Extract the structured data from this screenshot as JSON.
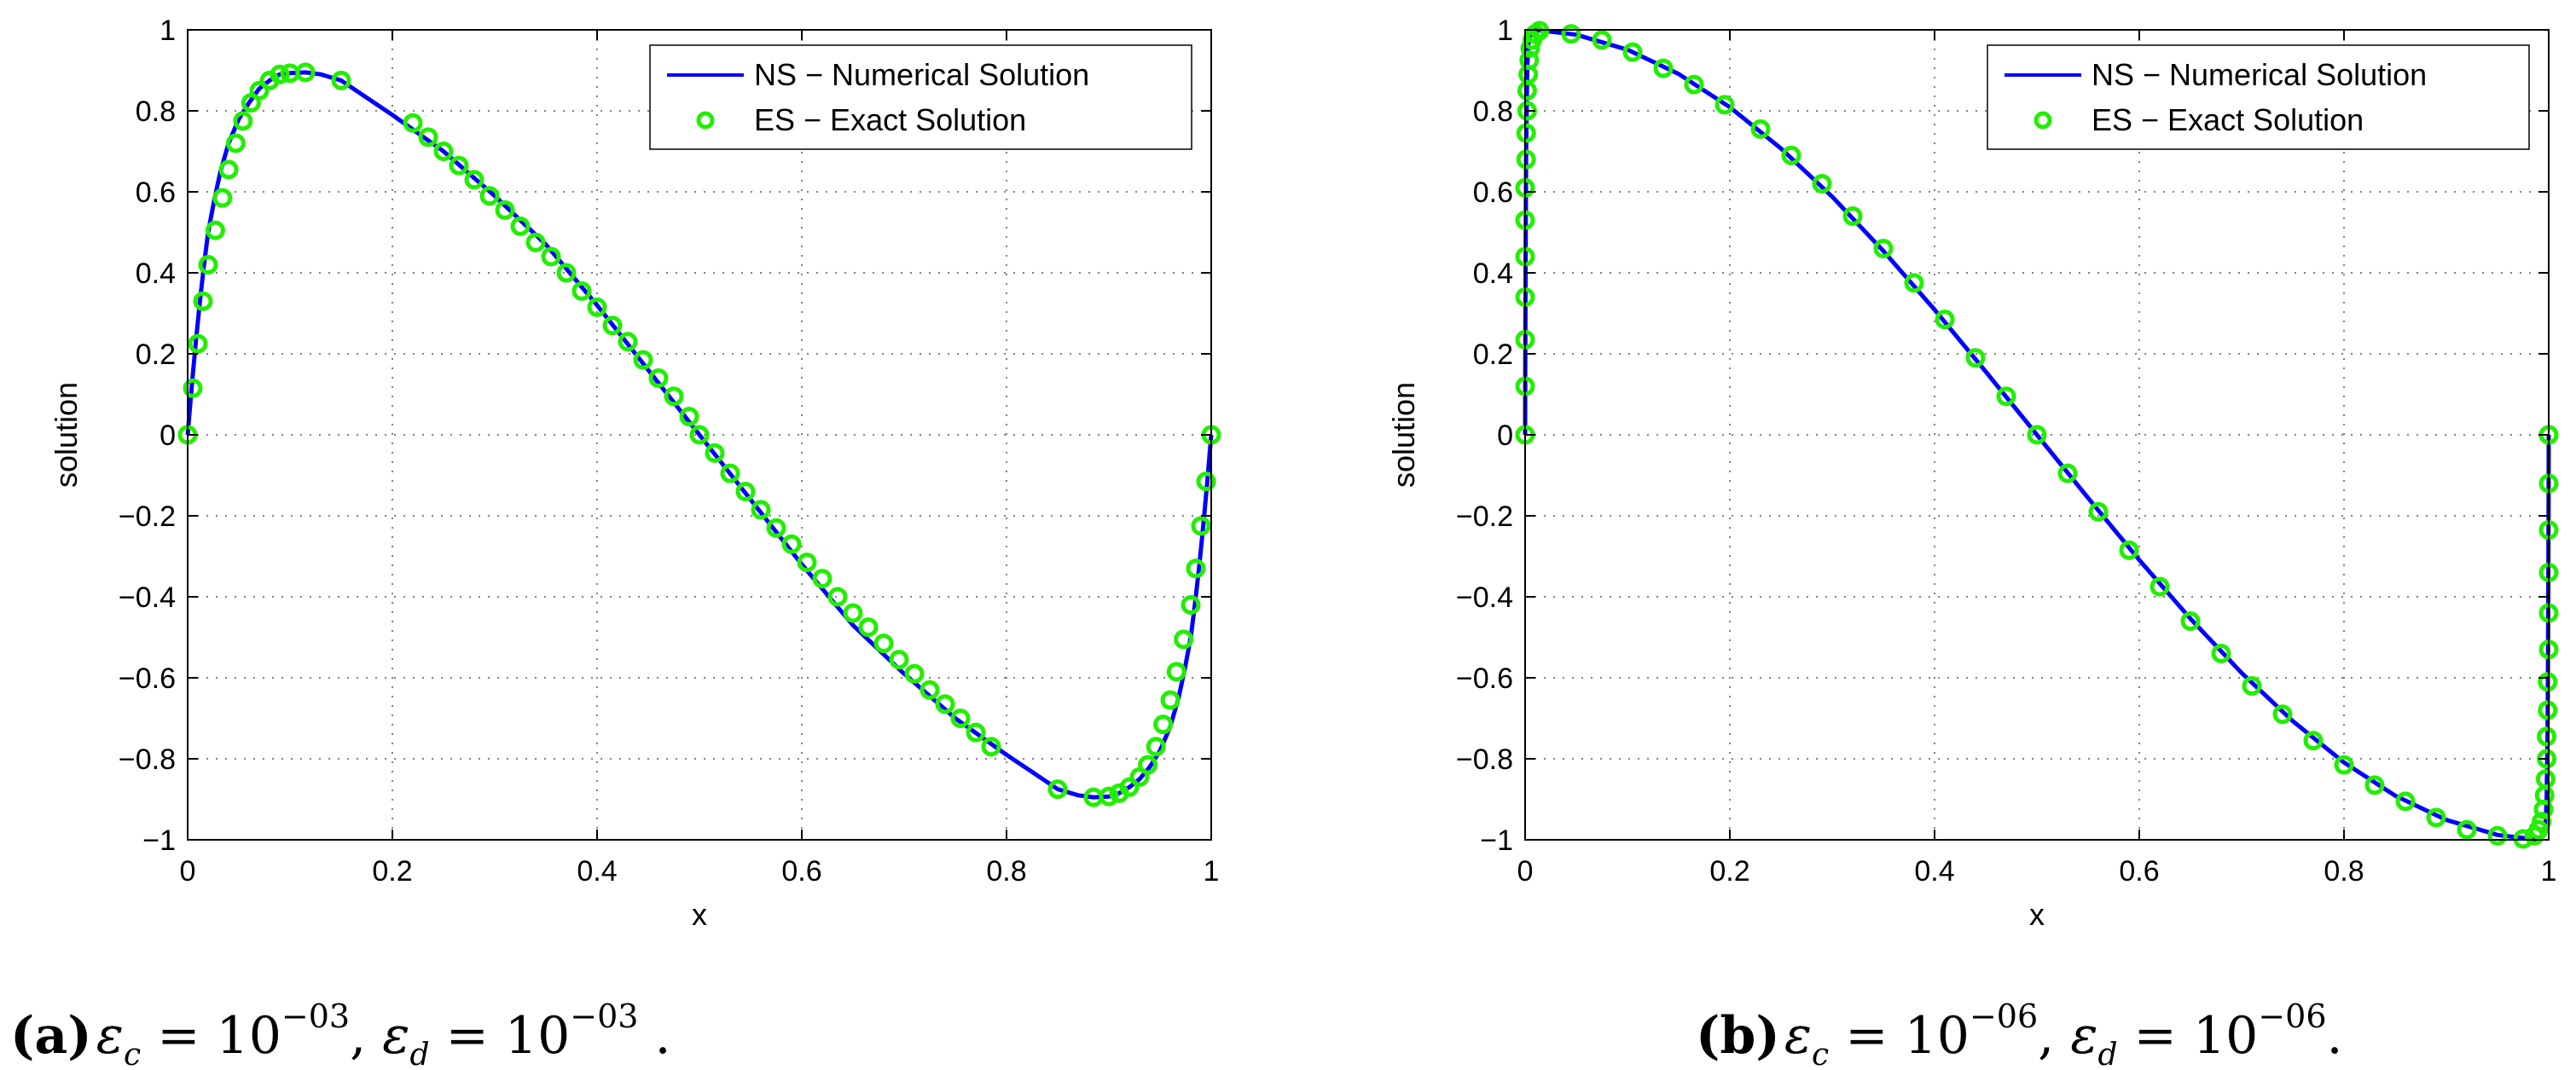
{
  "chart_data": [
    {
      "type": "line",
      "panel": "a",
      "xlabel": "x",
      "ylabel": "solution",
      "xlim": [
        0,
        1
      ],
      "ylim": [
        -1,
        1
      ],
      "xticks": [
        0,
        0.2,
        0.4,
        0.6,
        0.8,
        1
      ],
      "xtick_labels": [
        "0",
        "0.2",
        "0.4",
        "0.6",
        "0.8",
        "1"
      ],
      "yticks": [
        -1,
        -0.8,
        -0.6,
        -0.4,
        -0.2,
        0,
        0.2,
        0.4,
        0.6,
        0.8,
        1
      ],
      "ytick_labels": [
        "−1",
        "−0.8",
        "−0.6",
        "−0.4",
        "−0.2",
        "0",
        "0.2",
        "0.4",
        "0.6",
        "0.8",
        "1"
      ],
      "grid": true,
      "legend_position": "top-right",
      "caption": {
        "tag": "(a)",
        "text": "εc = 10−03, εd = 10−03 ."
      },
      "series": [
        {
          "name": "NS − Numerical Solution",
          "style": "line",
          "color": "#0000ff",
          "x": [
            0,
            0.004,
            0.008,
            0.012,
            0.016,
            0.02,
            0.026,
            0.032,
            0.04,
            0.05,
            0.06,
            0.07,
            0.08,
            0.09,
            0.1,
            0.115,
            0.13,
            0.15,
            0.2,
            0.25,
            0.3,
            0.35,
            0.4,
            0.45,
            0.5,
            0.55,
            0.6,
            0.65,
            0.7,
            0.75,
            0.8,
            0.85,
            0.87,
            0.885,
            0.9,
            0.91,
            0.92,
            0.93,
            0.94,
            0.95,
            0.96,
            0.968,
            0.974,
            0.98,
            0.984,
            0.988,
            0.992,
            0.996,
            1
          ],
          "y": [
            0,
            0.12,
            0.23,
            0.33,
            0.42,
            0.5,
            0.58,
            0.65,
            0.72,
            0.78,
            0.82,
            0.855,
            0.875,
            0.89,
            0.893,
            0.895,
            0.89,
            0.875,
            0.79,
            0.7,
            0.59,
            0.47,
            0.32,
            0.16,
            0,
            -0.16,
            -0.32,
            -0.47,
            -0.59,
            -0.7,
            -0.79,
            -0.875,
            -0.89,
            -0.895,
            -0.893,
            -0.885,
            -0.87,
            -0.85,
            -0.82,
            -0.78,
            -0.72,
            -0.65,
            -0.58,
            -0.5,
            -0.42,
            -0.33,
            -0.23,
            -0.12,
            0
          ]
        },
        {
          "name": "ES − Exact Solution",
          "style": "markers",
          "marker": "circle",
          "color": "#22ee00",
          "x": [
            0,
            0.005,
            0.01,
            0.015,
            0.02,
            0.027,
            0.034,
            0.04,
            0.047,
            0.054,
            0.062,
            0.07,
            0.08,
            0.09,
            0.1,
            0.115,
            0.15,
            0.22,
            0.235,
            0.25,
            0.265,
            0.28,
            0.295,
            0.31,
            0.325,
            0.34,
            0.355,
            0.37,
            0.385,
            0.4,
            0.415,
            0.43,
            0.445,
            0.46,
            0.475,
            0.49,
            0.5,
            0.515,
            0.53,
            0.545,
            0.56,
            0.575,
            0.59,
            0.605,
            0.62,
            0.635,
            0.65,
            0.665,
            0.68,
            0.695,
            0.71,
            0.725,
            0.74,
            0.755,
            0.77,
            0.785,
            0.85,
            0.885,
            0.9,
            0.91,
            0.92,
            0.93,
            0.938,
            0.946,
            0.953,
            0.96,
            0.966,
            0.973,
            0.98,
            0.985,
            0.99,
            0.995,
            1
          ],
          "y": [
            0,
            0.115,
            0.225,
            0.33,
            0.42,
            0.505,
            0.585,
            0.655,
            0.72,
            0.775,
            0.82,
            0.85,
            0.875,
            0.89,
            0.893,
            0.895,
            0.875,
            0.77,
            0.735,
            0.7,
            0.665,
            0.63,
            0.59,
            0.555,
            0.515,
            0.475,
            0.44,
            0.4,
            0.355,
            0.315,
            0.27,
            0.23,
            0.185,
            0.14,
            0.095,
            0.045,
            0,
            -0.045,
            -0.095,
            -0.14,
            -0.185,
            -0.23,
            -0.27,
            -0.315,
            -0.355,
            -0.4,
            -0.44,
            -0.475,
            -0.515,
            -0.555,
            -0.59,
            -0.63,
            -0.665,
            -0.7,
            -0.735,
            -0.77,
            -0.875,
            -0.895,
            -0.893,
            -0.885,
            -0.87,
            -0.845,
            -0.815,
            -0.77,
            -0.715,
            -0.655,
            -0.585,
            -0.505,
            -0.42,
            -0.33,
            -0.225,
            -0.115,
            0
          ]
        }
      ]
    },
    {
      "type": "line",
      "panel": "b",
      "xlabel": "x",
      "ylabel": "solution",
      "xlim": [
        0,
        1
      ],
      "ylim": [
        -1,
        1
      ],
      "xticks": [
        0,
        0.2,
        0.4,
        0.6,
        0.8,
        1
      ],
      "xtick_labels": [
        "0",
        "0.2",
        "0.4",
        "0.6",
        "0.8",
        "1"
      ],
      "yticks": [
        -1,
        -0.8,
        -0.6,
        -0.4,
        -0.2,
        0,
        0.2,
        0.4,
        0.6,
        0.8,
        1
      ],
      "ytick_labels": [
        "−1",
        "−0.8",
        "−0.6",
        "−0.4",
        "−0.2",
        "0",
        "0.2",
        "0.4",
        "0.6",
        "0.8",
        "1"
      ],
      "grid": true,
      "legend_position": "top-right",
      "caption": {
        "tag": "(b)",
        "text": "εc = 10−06, εd = 10−06."
      },
      "series": [
        {
          "name": "NS − Numerical Solution",
          "style": "line",
          "color": "#0000ff",
          "x": [
            0,
            0.0002,
            0.0005,
            0.001,
            0.002,
            0.003,
            0.005,
            0.01,
            0.05,
            0.1,
            0.15,
            0.2,
            0.25,
            0.3,
            0.35,
            0.4,
            0.45,
            0.5,
            0.55,
            0.6,
            0.65,
            0.7,
            0.75,
            0.8,
            0.85,
            0.9,
            0.95,
            0.99,
            0.995,
            0.997,
            0.998,
            0.999,
            0.9995,
            0.9998,
            1
          ],
          "y": [
            0,
            0.2,
            0.45,
            0.7,
            0.9,
            0.96,
            0.99,
            1,
            0.988,
            0.951,
            0.891,
            0.809,
            0.707,
            0.588,
            0.454,
            0.309,
            0.156,
            0,
            -0.156,
            -0.309,
            -0.454,
            -0.588,
            -0.707,
            -0.809,
            -0.891,
            -0.951,
            -0.988,
            -1,
            -0.99,
            -0.96,
            -0.9,
            -0.7,
            -0.45,
            -0.2,
            0
          ]
        },
        {
          "name": "ES − Exact Solution",
          "style": "markers",
          "marker": "circle",
          "color": "#22ee00",
          "x": [
            0,
            0,
            0,
            0,
            0,
            0,
            0,
            0.001,
            0.001,
            0.002,
            0.002,
            0.003,
            0.004,
            0.005,
            0.007,
            0.01,
            0.014,
            0.045,
            0.075,
            0.105,
            0.135,
            0.165,
            0.195,
            0.23,
            0.26,
            0.29,
            0.32,
            0.35,
            0.38,
            0.41,
            0.44,
            0.47,
            0.5,
            0.53,
            0.56,
            0.59,
            0.62,
            0.65,
            0.68,
            0.71,
            0.74,
            0.77,
            0.8,
            0.83,
            0.86,
            0.89,
            0.92,
            0.95,
            0.975,
            0.986,
            0.99,
            0.993,
            0.995,
            0.996,
            0.997,
            0.998,
            0.998,
            0.999,
            0.999,
            1,
            1,
            1,
            1,
            1,
            1,
            1
          ],
          "y": [
            0,
            0.12,
            0.235,
            0.34,
            0.44,
            0.53,
            0.61,
            0.68,
            0.745,
            0.8,
            0.85,
            0.89,
            0.925,
            0.955,
            0.975,
            0.99,
            0.998,
            0.99,
            0.975,
            0.945,
            0.905,
            0.865,
            0.815,
            0.755,
            0.69,
            0.62,
            0.54,
            0.46,
            0.375,
            0.285,
            0.19,
            0.095,
            0,
            -0.095,
            -0.19,
            -0.285,
            -0.375,
            -0.46,
            -0.54,
            -0.62,
            -0.69,
            -0.755,
            -0.815,
            -0.865,
            -0.905,
            -0.945,
            -0.975,
            -0.99,
            -0.998,
            -0.99,
            -0.975,
            -0.955,
            -0.925,
            -0.89,
            -0.85,
            -0.8,
            -0.745,
            -0.68,
            -0.61,
            -0.53,
            -0.44,
            -0.34,
            -0.235,
            -0.12,
            0,
            0
          ]
        }
      ]
    }
  ]
}
